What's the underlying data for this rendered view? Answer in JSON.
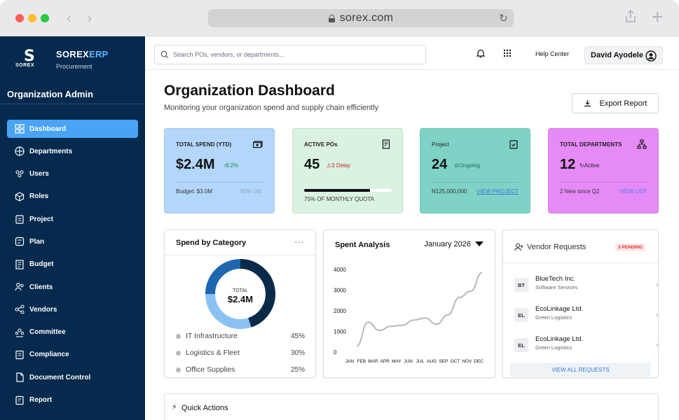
{
  "browser": {
    "url": "sorex.com"
  },
  "brand": {
    "name_main": "SOREX",
    "name_accent": "ERP",
    "sub": "Procurement",
    "logo_text": "SOREX"
  },
  "sidebar": {
    "org_title": "Organization Admin",
    "items": [
      {
        "label": "Dashboard",
        "icon": "grid-icon"
      },
      {
        "label": "Departments",
        "icon": "building-icon"
      },
      {
        "label": "Users",
        "icon": "users-icon"
      },
      {
        "label": "Roles",
        "icon": "roles-icon"
      },
      {
        "label": "Project",
        "icon": "clipboard-icon"
      },
      {
        "label": "Plan",
        "icon": "plan-icon"
      },
      {
        "label": "Budget",
        "icon": "budget-icon"
      },
      {
        "label": "Clients",
        "icon": "clients-icon"
      },
      {
        "label": "Vendors",
        "icon": "vendors-icon"
      },
      {
        "label": "Committee",
        "icon": "committee-icon"
      },
      {
        "label": "Compliance",
        "icon": "shield-icon"
      },
      {
        "label": "Document Control",
        "icon": "document-icon"
      },
      {
        "label": "Report",
        "icon": "report-icon"
      }
    ]
  },
  "topbar": {
    "search_placeholder": "Search POs, vendors, or departments...",
    "help": "Help Center",
    "user_name": "David Ayodele"
  },
  "header": {
    "title": "Organization Dashboard",
    "subtitle": "Monitoring your organization spend and supply chain efficiently",
    "export_label": "Export Report"
  },
  "stats": {
    "spend": {
      "label": "TOTAL SPEND (YTD)",
      "value": "$2.4M",
      "delta": "8.2%",
      "foot_left": "Budget: $3.0M",
      "foot_right": "80% Util."
    },
    "pos": {
      "label": "ACTIVE POs",
      "value": "45",
      "delay": "3 Delay",
      "quota_fraction": 0.75,
      "foot": "75% OF MONTHLY QUOTA"
    },
    "project": {
      "label": "Project",
      "value": "24",
      "status": "Ongoing",
      "foot_left": "N125,000,000",
      "link": "VIEW PROJECT"
    },
    "departments": {
      "label": "TOTAL DEPARTMENTS",
      "value": "12",
      "status": "Active",
      "foot_left": "2 New since Q2",
      "link": "VIEW LIST"
    }
  },
  "category": {
    "title": "Spend by Category",
    "center_label": "TOTAL",
    "center_value": "$2.4M",
    "items": [
      {
        "name": "IT Infrastructure",
        "pct": "45%"
      },
      {
        "name": "Logistics & Fleet",
        "pct": "30%"
      },
      {
        "name": "Office Supplies",
        "pct": "25%"
      }
    ],
    "colors": [
      "#0a2a4a",
      "#8ac2f4",
      "#1f66b0"
    ]
  },
  "chart_data": {
    "type": "line",
    "title": "Spent Analysis",
    "period": "January 2026",
    "categories": [
      "JAN",
      "FEB",
      "MAR",
      "APR",
      "MAY",
      "JUN",
      "JUL",
      "AUG",
      "SEP",
      "OCT",
      "NOV",
      "DEC"
    ],
    "values": [
      300,
      1450,
      1050,
      1250,
      1300,
      1550,
      1650,
      1350,
      1800,
      2650,
      2950,
      3850
    ],
    "yticks": [
      0,
      1000,
      2000,
      3000,
      4000
    ],
    "ylim": [
      0,
      4000
    ]
  },
  "vendors": {
    "title": "Vendor Requests",
    "badge": "3 PENDING",
    "items": [
      {
        "badge": "BT",
        "name": "BlueTech Inc.",
        "sub": "Software Services"
      },
      {
        "badge": "EL",
        "name": "EcoLinkage Ltd.",
        "sub": "Green Logistics"
      },
      {
        "badge": "EL",
        "name": "EcoLinkage Ltd.",
        "sub": "Green Logistics"
      }
    ],
    "view_all": "VIEW ALL REQUESTS"
  },
  "quick_actions": {
    "title": "Quick Actions"
  }
}
